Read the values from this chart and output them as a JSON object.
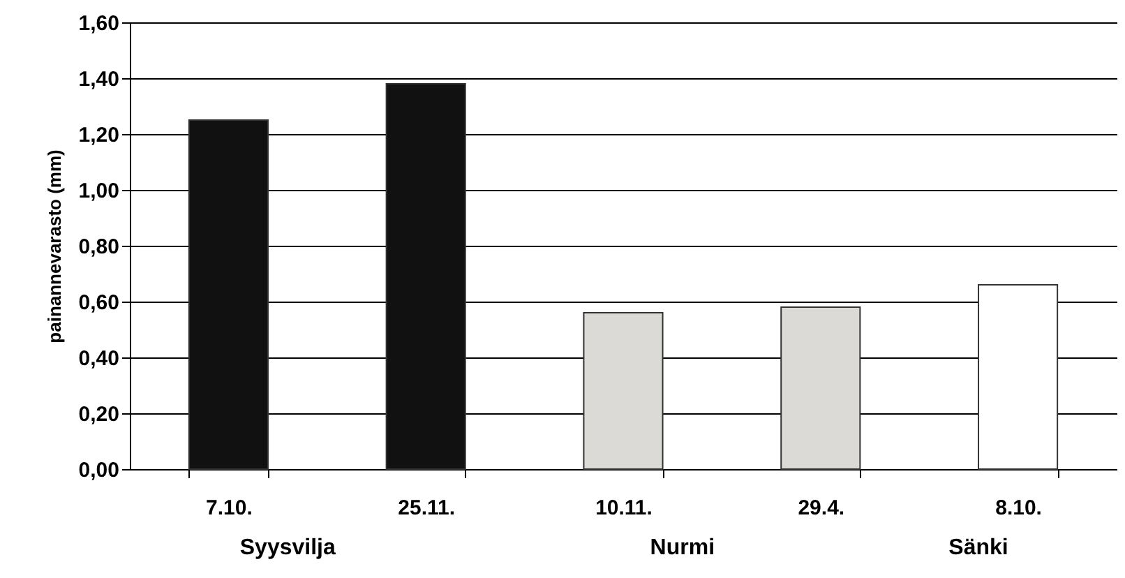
{
  "chart_data": {
    "type": "bar",
    "ylabel": "painannevarasto (mm)",
    "categories": [
      "7.10.",
      "25.11.",
      "10.11.",
      "29.4.",
      "8.10."
    ],
    "values": [
      1.25,
      1.38,
      0.56,
      0.58,
      0.66
    ],
    "colors": [
      "#111111",
      "#111111",
      "#dcdad6",
      "#dcdad6",
      "#ffffff"
    ],
    "ylim": [
      0,
      1.6
    ],
    "yticks": [
      {
        "value": 0,
        "label": "0,00"
      },
      {
        "value": 0.2,
        "label": "0,20"
      },
      {
        "value": 0.4,
        "label": "0,40"
      },
      {
        "value": 0.6,
        "label": "0,60"
      },
      {
        "value": 0.8,
        "label": "0,80"
      },
      {
        "value": 1.0,
        "label": "1,00"
      },
      {
        "value": 1.2,
        "label": "1,20"
      },
      {
        "value": 1.4,
        "label": "1,40"
      },
      {
        "value": 1.6,
        "label": "1,60"
      }
    ],
    "grid": "y",
    "annotations": [
      "Syysvilja",
      "Nurmi",
      "Sänki"
    ]
  }
}
